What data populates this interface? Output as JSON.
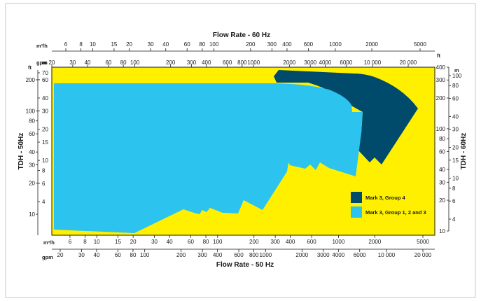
{
  "chart_data": {
    "type": "area",
    "top_axis": {
      "title": "Flow Rate - 60 Hz",
      "m3h_unit": "m³/h",
      "m3h_ticks": [
        "6",
        "8",
        "10",
        "15",
        "20",
        "30",
        "40",
        "60",
        "80",
        "100",
        "200",
        "300",
        "400",
        "600",
        "1000",
        "2000",
        "5000"
      ],
      "gpm_unit": "gpm",
      "gpm_ticks": [
        "20",
        "30",
        "40",
        "60",
        "80",
        "100",
        "200",
        "300",
        "400",
        "600",
        "800",
        "1000",
        "2000",
        "3000",
        "4000",
        "6000",
        "10 000",
        "20 000"
      ]
    },
    "bottom_axis": {
      "title": "Flow Rate - 50 Hz",
      "m3h_unit": "m³/h",
      "m3h_ticks": [
        "6",
        "8",
        "10",
        "15",
        "20",
        "30",
        "40",
        "60",
        "80",
        "100",
        "200",
        "300",
        "400",
        "600",
        "1000",
        "2000",
        "5000"
      ],
      "gpm_unit": "gpm",
      "gpm_ticks": [
        "20",
        "30",
        "40",
        "60",
        "80",
        "100",
        "200",
        "300",
        "400",
        "600",
        "800",
        "1000",
        "2000",
        "3000",
        "4000",
        "6000",
        "10 000",
        "20 000"
      ]
    },
    "left_axis": {
      "title": "TDH - 50Hz",
      "ft_unit": "ft",
      "m_unit": "m",
      "ft_ticks": [
        "200",
        "100",
        "80",
        "60",
        "40",
        "30",
        "20",
        "10"
      ],
      "m_ticks": [
        "70",
        "60",
        "40",
        "30",
        "20",
        "15",
        "10",
        "8",
        "6",
        "4"
      ]
    },
    "right_axis": {
      "title": "TDH - 60Hz",
      "ft_unit": "ft",
      "m_unit": "m",
      "ft_ticks": [
        "400",
        "300",
        "200",
        "100",
        "80",
        "60",
        "40",
        "30",
        "20",
        "10"
      ],
      "m_ticks": [
        "100",
        "80",
        "60",
        "40",
        "30",
        "20",
        "15",
        "10",
        "8",
        "6",
        "4"
      ]
    },
    "series": [
      {
        "name": "Mark 3, Group 4",
        "color": "#004a6b"
      },
      {
        "name": "Mark 3, Group 1, 2 and 3",
        "color": "#2cc3ef"
      }
    ],
    "background_color": "#fff000",
    "legend_position": "bottom-right",
    "grid": false
  }
}
